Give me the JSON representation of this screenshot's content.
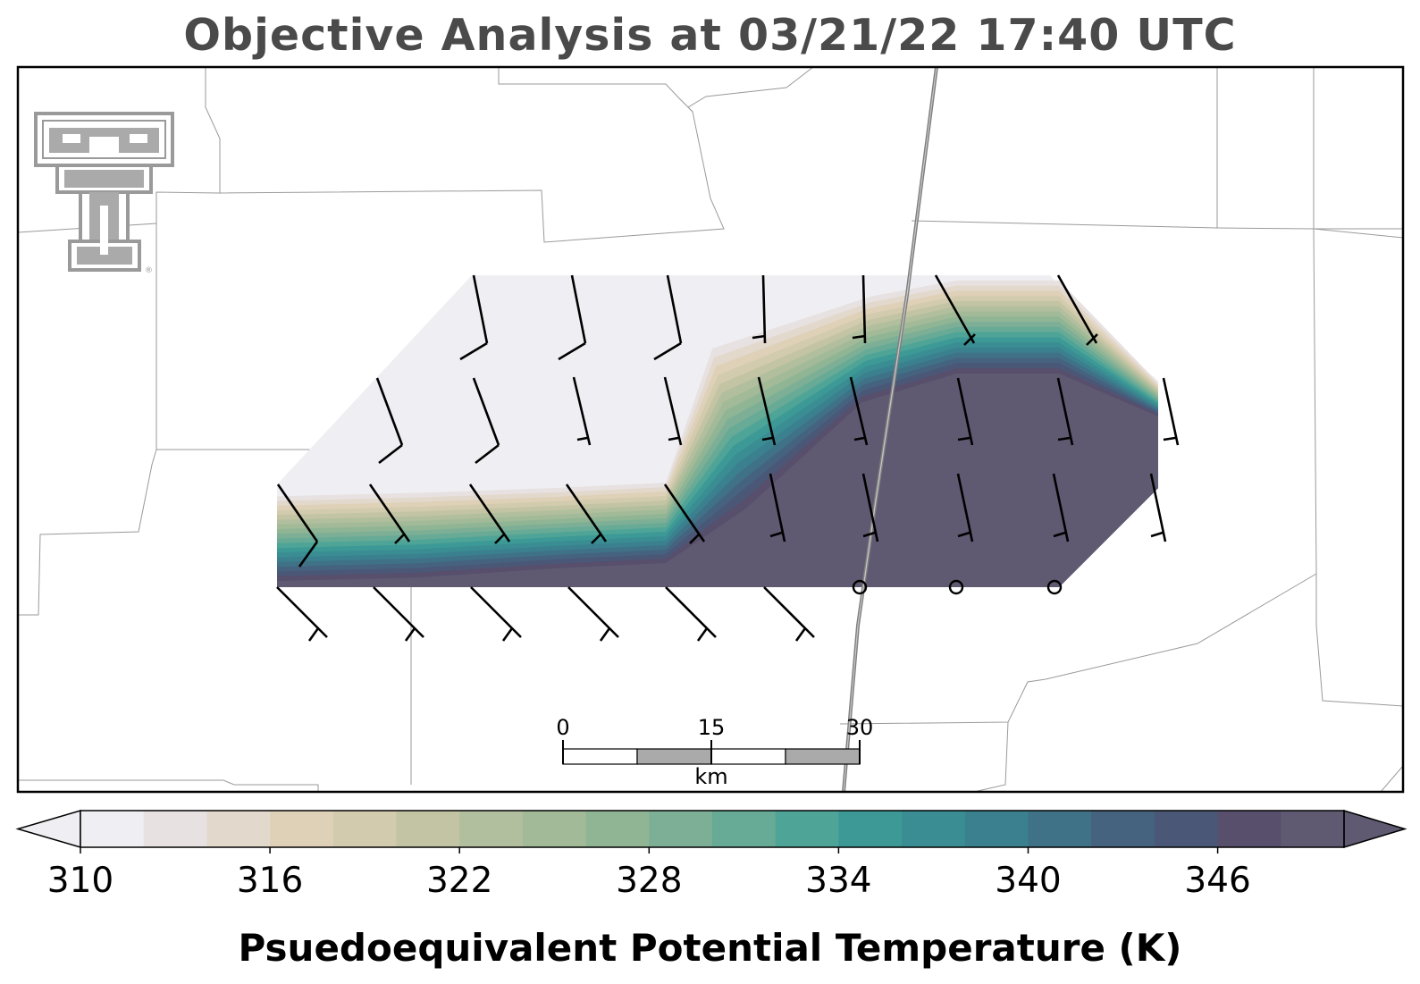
{
  "title": "Objective Analysis at 03/21/22 17:40 UTC",
  "logo": {
    "name": "Texas Tech double-T logo",
    "mark": "®"
  },
  "colors": {
    "scale": [
      "#efeff3",
      "#e7e2e1",
      "#e3d8cc",
      "#ded1b8",
      "#d2cbad",
      "#c3c4a4",
      "#b2bf9e",
      "#a2ba98",
      "#8fb595",
      "#7caf96",
      "#67aa96",
      "#4ea497",
      "#3c9996",
      "#3a8d92",
      "#3b808e",
      "#3f7187",
      "#45627f",
      "#4b5776",
      "#574f6c",
      "#5f5a72"
    ],
    "above": "#5f5a72",
    "below": "#efeff3",
    "state_lines": "#9a9a9a",
    "highway": "#7f7f7f",
    "barbs": "#000000"
  },
  "colorbar": {
    "label": "Psuedoequivalent Potential Temperature (K)",
    "min": 310,
    "max": 350,
    "step": 2,
    "extend": "both",
    "ticks": [
      "310",
      "316",
      "322",
      "328",
      "334",
      "340",
      "346"
    ]
  },
  "scalebar": {
    "ticks": [
      "0",
      "15",
      "30"
    ],
    "unit": "km"
  },
  "wind_barbs": {
    "rows": [
      [
        "barb-10kt-sw",
        "barb-10kt-sw",
        "barb-10kt-sw",
        "barb-5kt-s",
        "barb-5kt-s",
        "barb-5kt-nw",
        "barb-5kt-nw"
      ],
      [
        "barb-10kt-sw",
        "barb-10kt-sw",
        "barb-5kt-s",
        "barb-5kt-s",
        "barb-5kt-s",
        "barb-5kt-s",
        "barb-5kt-nne",
        "barb-5kt-nne",
        "barb-5kt-nne"
      ],
      [
        "barb-10kt-nw",
        "barb-5kt-nw",
        "barb-5kt-nw",
        "barb-5kt-nw",
        "barb-5kt-nw",
        "barb-5kt-n",
        "barb-5kt-n",
        "barb-5kt-n",
        "barb-5kt-n",
        "barb-5kt-n"
      ],
      [
        "barb-5kt-nw",
        "barb-5kt-nw",
        "barb-5kt-nw",
        "barb-5kt-nw",
        "barb-5kt-nw",
        "barb-5kt-nw",
        "calm",
        "calm",
        "calm"
      ]
    ]
  }
}
